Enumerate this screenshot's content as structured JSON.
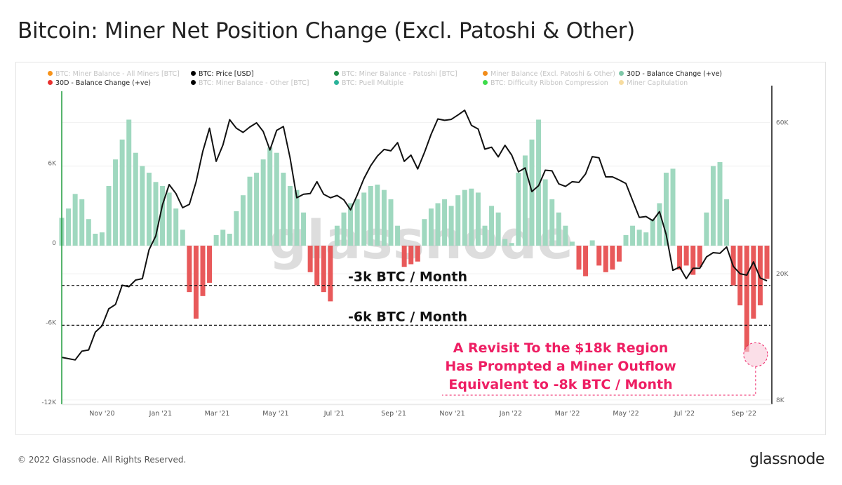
{
  "title": "Bitcoin: Miner Net Position Change (Excl. Patoshi & Other)",
  "legend": [
    {
      "label": "BTC: Miner Balance - All Miners [BTC]",
      "color": "#f7931a",
      "active": false
    },
    {
      "label": "BTC: Price [USD]",
      "color": "#000000",
      "active": true
    },
    {
      "label": "BTC: Miner Balance - Patoshi [BTC]",
      "color": "#1e8c45",
      "active": false
    },
    {
      "label": "Miner Balance (Excl. Patoshi & Other)",
      "color": "#f28c1a",
      "active": false
    },
    {
      "label": "30D - Balance Change (+ve)",
      "color": "#7fc8a9",
      "active": true
    },
    {
      "label": "30D - Balance Change (+ve)",
      "color": "#e8312f",
      "active": true
    },
    {
      "label": "BTC: Miner Balance - Other [BTC]",
      "color": "#000000",
      "active": false
    },
    {
      "label": "BTC: Puell Multiple",
      "color": "#2bb39a",
      "active": false
    },
    {
      "label": "BTC: Difficulty Ribbon Compression",
      "color": "#3ddc4b",
      "active": false
    },
    {
      "label": "Miner Capitulation",
      "color": "#f7dca0",
      "active": false
    }
  ],
  "footer": "© 2022 Glassnode. All Rights Reserved.",
  "logo": "glassnode",
  "watermark": "glassnode",
  "chart_data": {
    "type": "bar+line",
    "title": "Bitcoin: Miner Net Position Change (Excl. Patoshi & Other)",
    "x_tick_labels": [
      "Nov '20",
      "Jan '21",
      "Mar '21",
      "May '21",
      "Jul '21",
      "Sep '21",
      "Nov '21",
      "Jan '22",
      "Mar '22",
      "May '22",
      "Jul '22",
      "Sep '22"
    ],
    "x_tick_dates": [
      "2020-11-01",
      "2021-01-01",
      "2021-03-01",
      "2021-05-01",
      "2021-07-01",
      "2021-09-01",
      "2021-11-01",
      "2022-01-01",
      "2022-03-01",
      "2022-05-01",
      "2022-07-01",
      "2022-09-01"
    ],
    "left_axis": {
      "ticks": [
        6000,
        0,
        -6000,
        -12000
      ],
      "tick_labels": [
        "6K",
        "0",
        "-6K",
        "-12K"
      ],
      "range": [
        -12000,
        10500
      ]
    },
    "right_axis": {
      "scale": "log",
      "ticks": [
        60000,
        20000,
        8000
      ],
      "tick_labels": [
        "60K",
        "20K",
        "8K"
      ],
      "range": [
        8000,
        80000
      ]
    },
    "colors": {
      "positive": "#9fd8bf",
      "negative": "#e8595a",
      "price": "#111111",
      "annotation": "#ee1e63",
      "left_axis": "#1e9c3c"
    },
    "dates": [
      "2020-09-20",
      "2020-09-27",
      "2020-10-04",
      "2020-10-11",
      "2020-10-18",
      "2020-10-25",
      "2020-11-01",
      "2020-11-08",
      "2020-11-15",
      "2020-11-22",
      "2020-11-29",
      "2020-12-06",
      "2020-12-13",
      "2020-12-20",
      "2020-12-27",
      "2021-01-03",
      "2021-01-10",
      "2021-01-17",
      "2021-01-24",
      "2021-01-31",
      "2021-02-07",
      "2021-02-14",
      "2021-02-21",
      "2021-02-28",
      "2021-03-07",
      "2021-03-14",
      "2021-03-21",
      "2021-03-28",
      "2021-04-04",
      "2021-04-11",
      "2021-04-18",
      "2021-04-25",
      "2021-05-02",
      "2021-05-09",
      "2021-05-16",
      "2021-05-23",
      "2021-05-30",
      "2021-06-06",
      "2021-06-13",
      "2021-06-20",
      "2021-06-27",
      "2021-07-04",
      "2021-07-11",
      "2021-07-18",
      "2021-07-25",
      "2021-08-01",
      "2021-08-08",
      "2021-08-15",
      "2021-08-22",
      "2021-08-29",
      "2021-09-05",
      "2021-09-12",
      "2021-09-19",
      "2021-09-26",
      "2021-10-03",
      "2021-10-10",
      "2021-10-17",
      "2021-10-24",
      "2021-10-31",
      "2021-11-07",
      "2021-11-14",
      "2021-11-21",
      "2021-11-28",
      "2021-12-05",
      "2021-12-12",
      "2021-12-19",
      "2021-12-26",
      "2022-01-02",
      "2022-01-09",
      "2022-01-16",
      "2022-01-23",
      "2022-01-30",
      "2022-02-06",
      "2022-02-13",
      "2022-02-20",
      "2022-02-27",
      "2022-03-06",
      "2022-03-13",
      "2022-03-20",
      "2022-03-27",
      "2022-04-03",
      "2022-04-10",
      "2022-04-17",
      "2022-04-24",
      "2022-05-01",
      "2022-05-08",
      "2022-05-15",
      "2022-05-22",
      "2022-05-29",
      "2022-06-05",
      "2022-06-12",
      "2022-06-19",
      "2022-06-26",
      "2022-07-03",
      "2022-07-10",
      "2022-07-17",
      "2022-07-24",
      "2022-07-31",
      "2022-08-07",
      "2022-08-14",
      "2022-08-21",
      "2022-08-28",
      "2022-09-04",
      "2022-09-11",
      "2022-09-18",
      "2022-09-25"
    ],
    "series": [
      {
        "name": "30D - Balance Change",
        "axis": "left",
        "kind": "bar",
        "values": [
          2100,
          2800,
          3900,
          3500,
          2000,
          900,
          1000,
          4500,
          6500,
          8000,
          9500,
          7000,
          6000,
          5500,
          4800,
          4500,
          4000,
          2800,
          1200,
          -3500,
          -5500,
          -3800,
          -2800,
          800,
          1200,
          900,
          2600,
          3800,
          5200,
          5500,
          6500,
          7400,
          7000,
          5500,
          4500,
          4200,
          2500,
          -2000,
          -3000,
          -3500,
          -4200,
          1500,
          2500,
          3200,
          3500,
          4000,
          4500,
          4600,
          4200,
          3500,
          1500,
          -1600,
          -1400,
          -1200,
          2000,
          2800,
          3200,
          3500,
          3000,
          3800,
          4200,
          4300,
          4000,
          1500,
          3000,
          2500,
          500,
          200,
          5500,
          6800,
          8000,
          9500,
          5000,
          3500,
          2500,
          1500,
          300,
          -1800,
          -2300,
          400,
          -1500,
          -2000,
          -1800,
          -1200,
          800,
          1500,
          1200,
          1000,
          2000,
          3200,
          5500,
          5800,
          -1800,
          -1500,
          -2200,
          -1600,
          2500,
          6000,
          6300,
          3500,
          -3000,
          -4500,
          -8000,
          -5500,
          -4500,
          -2500
        ]
      },
      {
        "name": "BTC: Price [USD]",
        "axis": "right",
        "kind": "line",
        "values": [
          10900,
          10800,
          10700,
          11400,
          11500,
          13100,
          13700,
          15500,
          16000,
          18400,
          18200,
          19100,
          19300,
          23800,
          26300,
          33000,
          38200,
          35800,
          32300,
          33100,
          38900,
          48600,
          57500,
          45200,
          50900,
          61200,
          57500,
          55800,
          58000,
          59800,
          56200,
          49100,
          56600,
          58200,
          46400,
          34700,
          35600,
          35800,
          39000,
          35600,
          34700,
          35300,
          34200,
          31800,
          35400,
          39900,
          43800,
          47000,
          49300,
          48800,
          51800,
          45200,
          47300,
          42800,
          48200,
          55000,
          61500,
          60900,
          61300,
          63300,
          65500,
          58700,
          57200,
          49400,
          50100,
          46700,
          50800,
          47300,
          41900,
          43100,
          36300,
          37900,
          42400,
          42200,
          38400,
          37700,
          39000,
          38800,
          41300,
          46800,
          46400,
          40400,
          40400,
          39500,
          38500,
          34000,
          30100,
          30300,
          29400,
          31400,
          26600,
          20500,
          21000,
          19300,
          20800,
          20800,
          22600,
          23300,
          23200,
          24300,
          21100,
          20000,
          19800,
          21800,
          19400,
          19000
        ]
      }
    ],
    "reference_lines": [
      {
        "value": -3000,
        "label": "-3k BTC / Month"
      },
      {
        "value": -6000,
        "label": "-6k BTC / Month"
      }
    ],
    "annotation": {
      "lines": [
        "A Revisit To the $18k Region",
        "Has Prompted a Miner Outflow",
        "Equivalent to -8k BTC / Month"
      ],
      "target_date": "2022-09-11",
      "target_value": -8000
    }
  }
}
